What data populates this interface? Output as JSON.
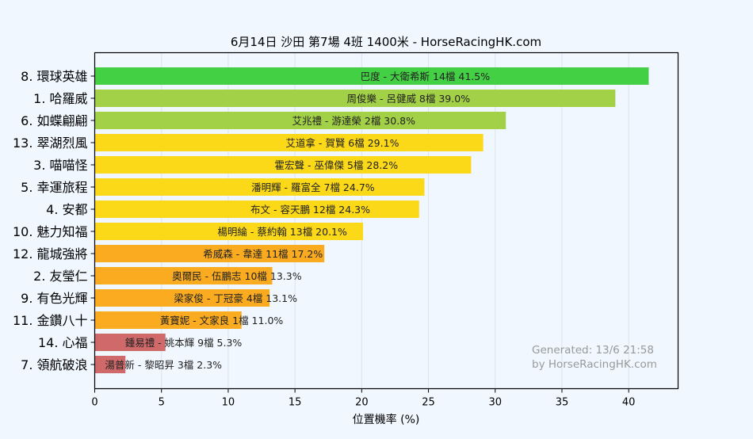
{
  "chart_data": {
    "type": "bar",
    "orientation": "horizontal",
    "title": "6月14日  沙田  第7場  4班  1400米 - HorseRacingHK.com",
    "xlabel": "位置機率 (%)",
    "ylabel": "",
    "xlim": [
      0,
      43.7
    ],
    "xticks": [
      0,
      5,
      10,
      15,
      20,
      25,
      30,
      35,
      40
    ],
    "grid": true,
    "categories": [
      "8. 環球英雄",
      "1. 哈羅威",
      "6. 如蝶翩翩",
      "13. 翠湖烈風",
      "3. 喵喵怪",
      "5. 幸運旅程",
      "4. 安都",
      "10. 魅力知福",
      "12. 龍城強將",
      "2. 友瑩仁",
      "9. 有色光輝",
      "11. 金鑽八十",
      "14. 心福",
      "7. 領航破浪"
    ],
    "values": [
      41.5,
      39.0,
      30.8,
      29.1,
      28.2,
      24.7,
      24.3,
      20.1,
      17.2,
      13.3,
      13.1,
      11.0,
      5.3,
      2.3
    ],
    "bar_labels": [
      "巴度 - 大衛希斯 14檔  41.5%",
      "周俊樂 - 呂健威 8檔  39.0%",
      "艾兆禮 - 游達榮 2檔  30.8%",
      "艾道拿 - 賀賢 6檔  29.1%",
      "霍宏聲 - 巫偉傑 5檔  28.2%",
      "潘明輝 - 羅富全 7檔  24.7%",
      "布文 - 容天鵬 12檔  24.3%",
      "楊明綸 - 蔡約翰 13檔  20.1%",
      "希威森 - 韋達 11檔  17.2%",
      "奧爾民 - 伍鵬志 10檔  13.3%",
      "梁家俊 - 丁冠豪 4檔  13.1%",
      "黃寶妮 - 文家良 1檔  11.0%",
      "鍾易禮 - 姚本輝 9檔  5.3%",
      "湯普新 - 黎昭昇 3檔  2.3%"
    ],
    "colors": [
      "#44d044",
      "#a2d046",
      "#a2d046",
      "#fcd918",
      "#fcd918",
      "#fcd918",
      "#fcd918",
      "#fcd918",
      "#fbab20",
      "#fbab20",
      "#fbab20",
      "#fbab20",
      "#d06a6a",
      "#d06a6a"
    ],
    "annotations": [
      "Generated: 13/6 21:58",
      "by HorseRacingHK.com"
    ]
  }
}
